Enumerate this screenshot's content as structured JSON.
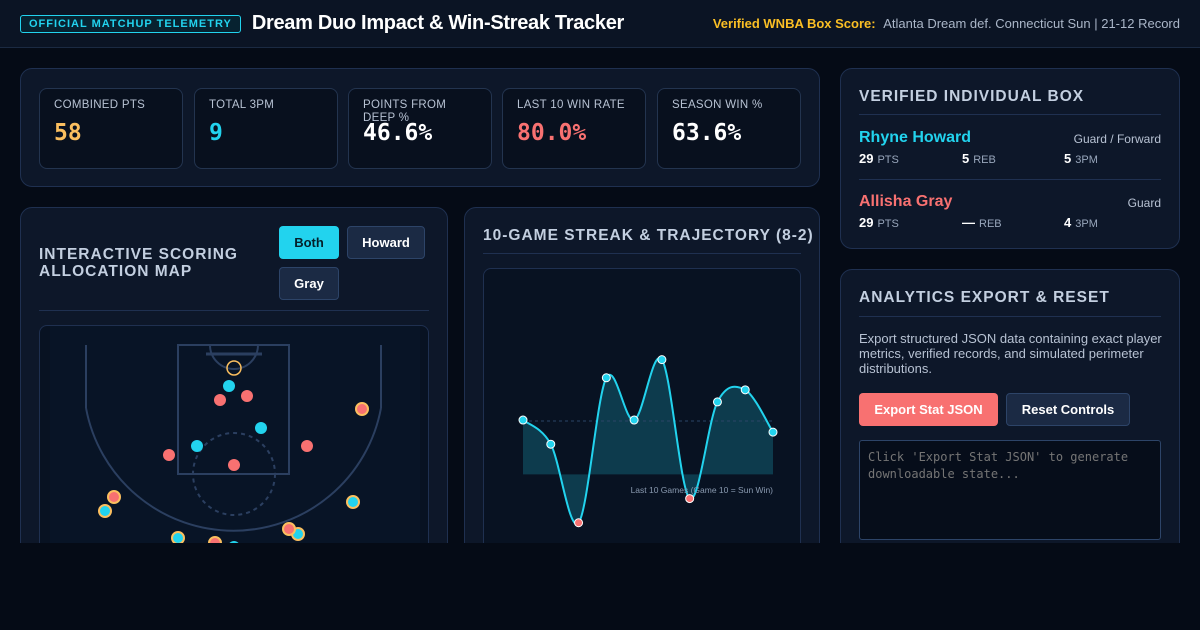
{
  "header": {
    "badge": "OFFICIAL MATCHUP TELEMETRY",
    "title": "Dream Duo Impact & Win-Streak Tracker",
    "verified_label": "Verified WNBA Box Score:",
    "verified_value": "Atlanta Dream def. Connecticut Sun | 21-12 Record"
  },
  "metrics": [
    {
      "label": "COMBINED PTS",
      "value": "58",
      "color": "#fbbf5f"
    },
    {
      "label": "TOTAL 3PM",
      "value": "9",
      "color": "#22d3ee"
    },
    {
      "label": "POINTS FROM DEEP %",
      "value": "46.6%",
      "color": "#ffffff"
    },
    {
      "label": "LAST 10 WIN RATE",
      "value": "80.0%",
      "color": "#f87171"
    },
    {
      "label": "SEASON WIN %",
      "value": "63.6%",
      "color": "#ffffff"
    }
  ],
  "scoring_map": {
    "title": "INTERACTIVE SCORING ALLOCATION MAP",
    "filters": [
      "Both",
      "Howard",
      "Gray"
    ],
    "active_filter": "Both"
  },
  "streak": {
    "title": "10-GAME STREAK & TRAJECTORY (8-2)",
    "caption": "Last 10 Games (Game 10 = Sun Win)"
  },
  "chart_data": {
    "type": "line",
    "x": [
      1,
      2,
      3,
      4,
      5,
      6,
      7,
      8,
      9,
      10
    ],
    "series": [
      {
        "values": [
          9,
          5,
          -8,
          16,
          9,
          19,
          -4,
          12,
          14,
          7
        ]
      }
    ],
    "results": [
      "W",
      "W",
      "L",
      "W",
      "W",
      "W",
      "L",
      "W",
      "W",
      "W"
    ],
    "ylim": [
      -14,
      34
    ],
    "xlabel": "Last 10 Games (Game 10 = Sun Win)"
  },
  "box": {
    "title": "VERIFIED INDIVIDUAL BOX",
    "players": [
      {
        "name": "Rhyne Howard",
        "role": "Guard / Forward",
        "color": "#22d3ee",
        "stats": [
          {
            "v": "29",
            "k": "PTS"
          },
          {
            "v": "5",
            "k": "REB"
          },
          {
            "v": "5",
            "k": "3PM"
          }
        ]
      },
      {
        "name": "Allisha Gray",
        "role": "Guard",
        "color": "#f87171",
        "stats": [
          {
            "v": "29",
            "k": "PTS"
          },
          {
            "v": "—",
            "k": "REB"
          },
          {
            "v": "4",
            "k": "3PM"
          }
        ]
      }
    ]
  },
  "export": {
    "title": "ANALYTICS EXPORT & RESET",
    "description": "Export structured JSON data containing exact player metrics, verified records, and simulated perimeter distributions.",
    "export_button": "Export Stat JSON",
    "reset_button": "Reset Controls",
    "output_placeholder": "Click 'Export Stat JSON' to generate downloadable state..."
  },
  "colors": {
    "howard": "#22d3ee",
    "gray": "#f87171",
    "deep_ring": "#fbbf5f",
    "accent": "#22d3ee"
  }
}
